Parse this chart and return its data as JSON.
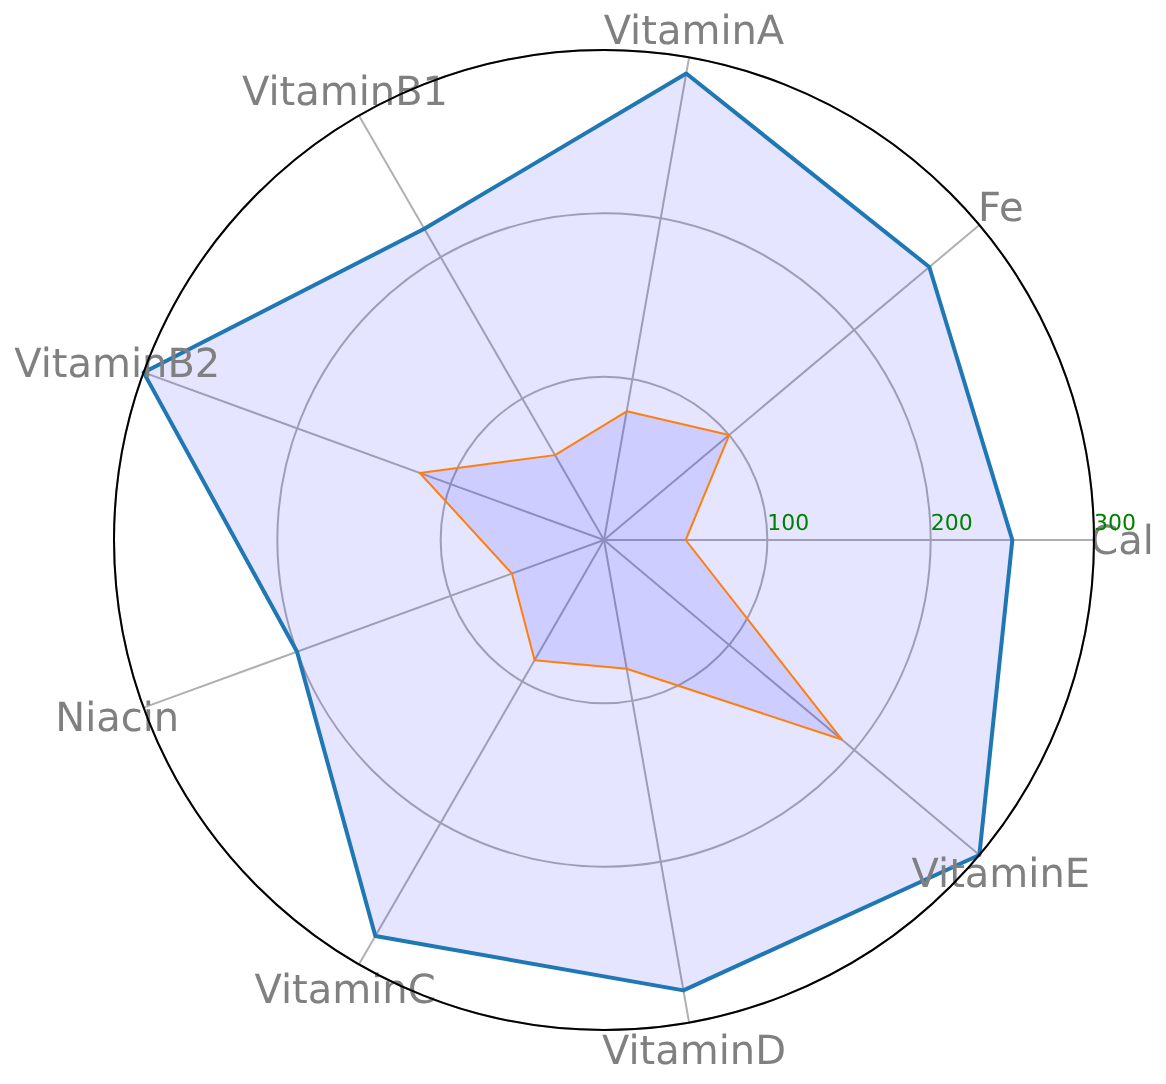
{
  "chart_data": {
    "type": "radar",
    "categories": [
      "VitaminA",
      "Fe",
      "Cal",
      "VitaminE",
      "VitaminD",
      "VitaminC",
      "Niacin",
      "VitaminB2",
      "VitaminB1"
    ],
    "series": [
      {
        "color": "#1f77b4",
        "values": [
          290,
          260,
          250,
          300,
          280,
          280,
          200,
          300,
          220
        ]
      },
      {
        "color": "#ff7f0e",
        "values": [
          80,
          100,
          50,
          190,
          80,
          85,
          60,
          120,
          60
        ]
      }
    ],
    "ylim": [
      0,
      300
    ],
    "yticks": [
      100,
      200,
      300
    ],
    "grid": true
  }
}
